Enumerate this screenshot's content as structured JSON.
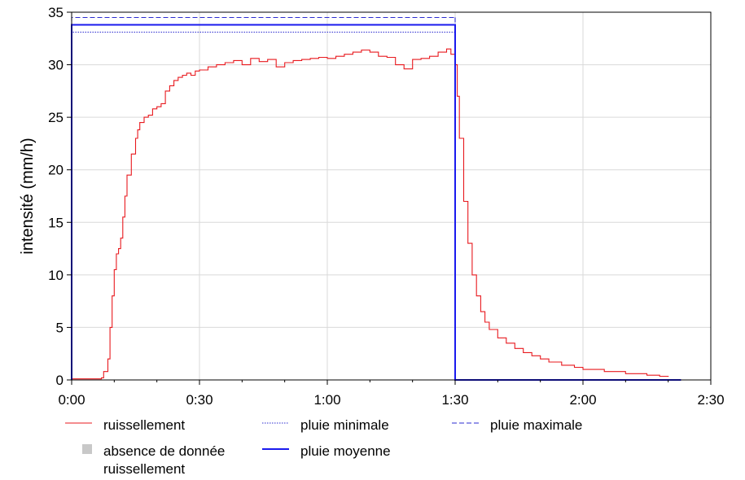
{
  "chart_data": {
    "type": "line",
    "title": "",
    "xlabel": "",
    "ylabel": "intensité (mm/h)",
    "x_unit": "h:mm",
    "xlim": [
      "0:00",
      "2:30"
    ],
    "ylim": [
      0,
      35
    ],
    "x_ticks": [
      "0:00",
      "0:30",
      "1:00",
      "1:30",
      "2:00",
      "2:30"
    ],
    "y_ticks": [
      "0",
      "5",
      "10",
      "15",
      "20",
      "25",
      "30",
      "35"
    ],
    "grid": true,
    "legend_position": "bottom",
    "series": [
      {
        "name": "ruissellement",
        "color": "#e8191e",
        "style": "solid",
        "x": [
          "0:00",
          "0:03",
          "0:07",
          "0:07.5",
          "0:08",
          "0:08.5",
          "0:09",
          "0:09.5",
          "0:10",
          "0:10.5",
          "0:11",
          "0:11.5",
          "0:12",
          "0:12.5",
          "0:13",
          "0:14",
          "0:15",
          "0:15.5",
          "0:16",
          "0:17",
          "0:18",
          "0:19",
          "0:20",
          "0:21",
          "0:22",
          "0:23",
          "0:24",
          "0:25",
          "0:26",
          "0:27",
          "0:28",
          "0:29",
          "0:30",
          "0:32",
          "0:34",
          "0:36",
          "0:38",
          "0:40",
          "0:42",
          "0:44",
          "0:46",
          "0:48",
          "0:50",
          "0:52",
          "0:54",
          "0:56",
          "0:58",
          "1:00",
          "1:02",
          "1:04",
          "1:06",
          "1:08",
          "1:10",
          "1:12",
          "1:14",
          "1:16",
          "1:18",
          "1:20",
          "1:22",
          "1:24",
          "1:26",
          "1:28",
          "1:29",
          "1:30",
          "1:30.5",
          "1:31",
          "1:32",
          "1:33",
          "1:34",
          "1:35",
          "1:36",
          "1:37",
          "1:38",
          "1:40",
          "1:42",
          "1:44",
          "1:46",
          "1:48",
          "1:50",
          "1:52",
          "1:55",
          "1:58",
          "2:00",
          "2:05",
          "2:10",
          "2:15",
          "2:18",
          "2:20"
        ],
        "values": [
          0.1,
          0.1,
          0.2,
          0.8,
          0.8,
          2.0,
          5.0,
          8.0,
          10.5,
          12.0,
          12.5,
          13.5,
          15.5,
          17.5,
          19.5,
          21.5,
          23.0,
          23.8,
          24.5,
          25.0,
          25.2,
          25.8,
          26.0,
          26.3,
          27.5,
          28.0,
          28.5,
          28.8,
          29.0,
          29.2,
          29.0,
          29.4,
          29.5,
          29.8,
          30.0,
          30.2,
          30.4,
          30.0,
          30.6,
          30.3,
          30.5,
          29.8,
          30.2,
          30.4,
          30.5,
          30.6,
          30.7,
          30.6,
          30.8,
          31.0,
          31.2,
          31.4,
          31.2,
          30.8,
          30.7,
          30.0,
          29.6,
          30.5,
          30.6,
          30.8,
          31.2,
          31.5,
          31.0,
          30.0,
          27.0,
          23.0,
          17.0,
          13.0,
          10.0,
          8.0,
          6.5,
          5.5,
          4.8,
          4.0,
          3.5,
          3.0,
          2.6,
          2.3,
          2.0,
          1.7,
          1.4,
          1.2,
          1.0,
          0.8,
          0.6,
          0.45,
          0.35,
          0.3
        ]
      },
      {
        "name": "pluie minimale",
        "color": "#2b2bd0",
        "style": "dotted",
        "x": [
          "0:00",
          "0:00",
          "1:30",
          "1:30"
        ],
        "values": [
          0,
          33.1,
          33.1,
          0
        ]
      },
      {
        "name": "pluie maximale",
        "color": "#2b2bd0",
        "style": "dashed",
        "x": [
          "0:00",
          "0:00",
          "1:30",
          "1:30"
        ],
        "values": [
          0,
          34.5,
          34.5,
          0
        ]
      },
      {
        "name": "pluie moyenne",
        "color": "#1a1aee",
        "style": "solid",
        "x": [
          "0:00",
          "0:00",
          "1:30",
          "1:30",
          "2:23"
        ],
        "values": [
          0,
          33.8,
          33.8,
          0,
          0
        ]
      }
    ],
    "legend": [
      {
        "label": "ruissellement",
        "kind": "line",
        "color": "#e8191e",
        "style": "solid"
      },
      {
        "label": "pluie minimale",
        "kind": "line",
        "color": "#2b2bd0",
        "style": "dotted"
      },
      {
        "label": "pluie maximale",
        "kind": "line",
        "color": "#2b2bd0",
        "style": "dashed"
      },
      {
        "label": "absence de donnée ruissellement",
        "lines": [
          "absence de donnée",
          "ruissellement"
        ],
        "kind": "box",
        "color": "#c8c8c8"
      },
      {
        "label": "pluie moyenne",
        "kind": "line",
        "color": "#1a1aee",
        "style": "solid"
      }
    ]
  }
}
